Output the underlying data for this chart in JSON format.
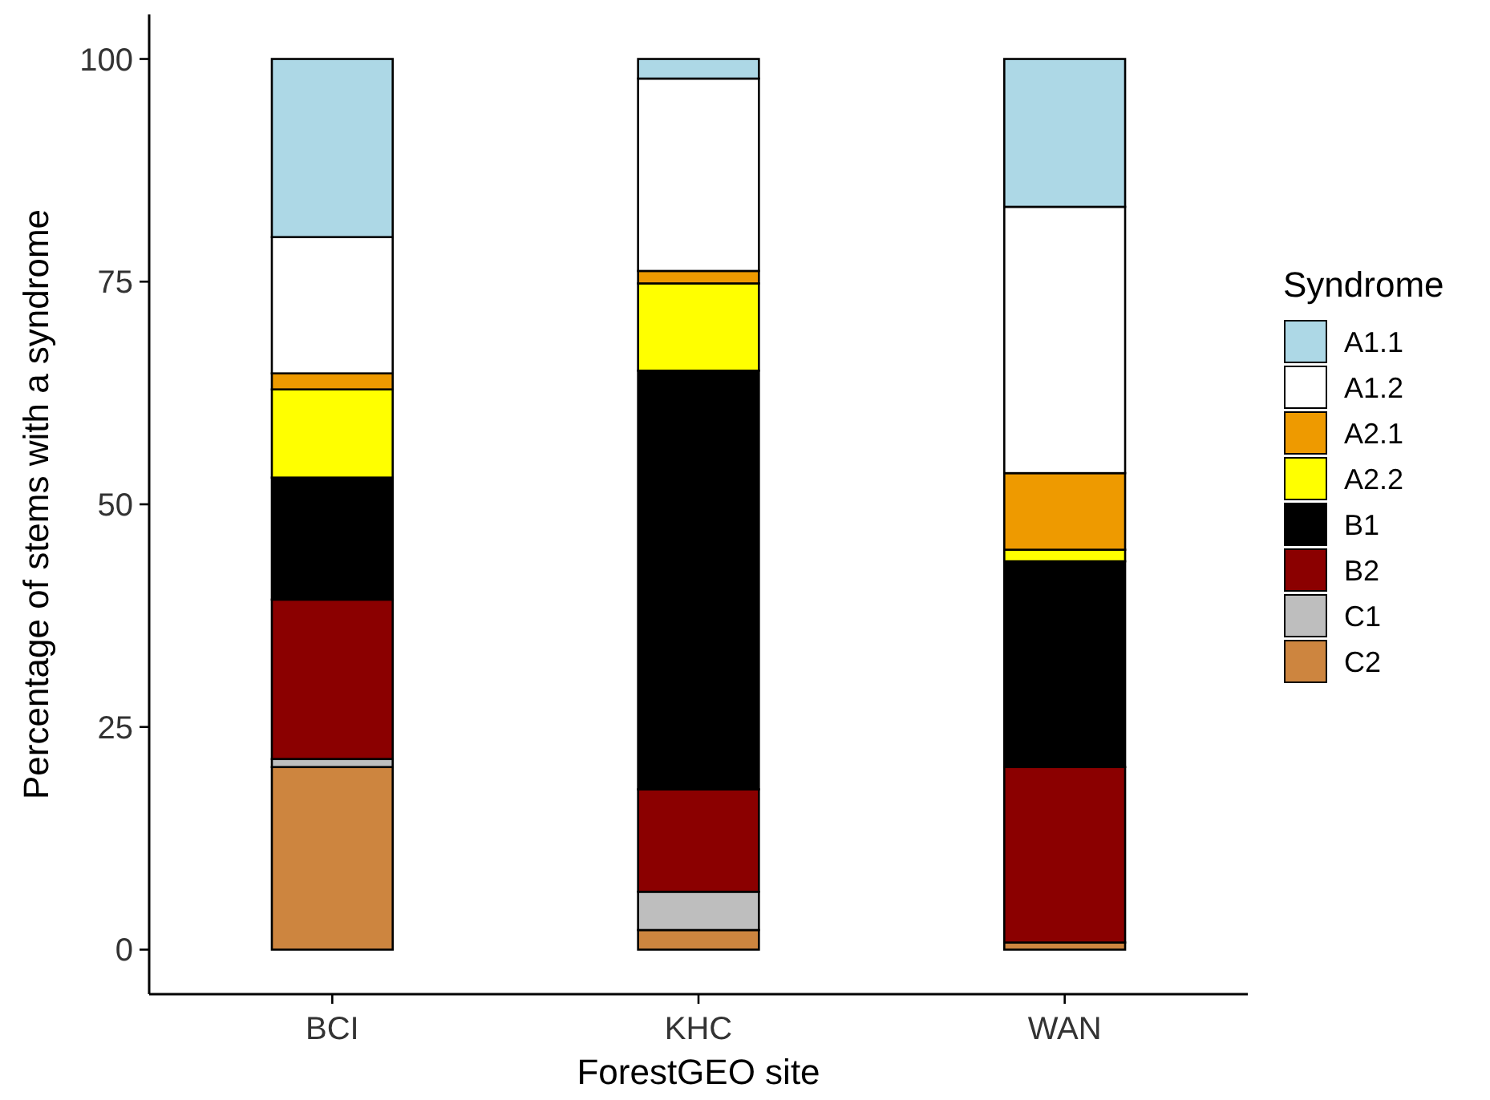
{
  "chart_data": {
    "type": "bar",
    "stacked": true,
    "xlabel": "ForestGEO site",
    "ylabel": "Percentage of stems with a syndrome",
    "legend_title": "Syndrome",
    "legend": "right",
    "grid": false,
    "categories": [
      "BCI",
      "KHC",
      "WAN"
    ],
    "ylim": [
      -5,
      105
    ],
    "yticks": [
      0,
      25,
      50,
      75,
      100
    ],
    "series": [
      {
        "name": "C2",
        "color": "#cd853f",
        "values": [
          20.5,
          2.2,
          0.8
        ]
      },
      {
        "name": "C1",
        "color": "#bebebe",
        "values": [
          0.9,
          4.3,
          0
        ]
      },
      {
        "name": "B2",
        "color": "#8b0000",
        "values": [
          17.9,
          11.5,
          19.7
        ]
      },
      {
        "name": "B1",
        "color": "#000000",
        "values": [
          13.7,
          47.0,
          23.1
        ]
      },
      {
        "name": "A2.2",
        "color": "#ffff00",
        "values": [
          9.9,
          9.8,
          1.3
        ]
      },
      {
        "name": "A2.1",
        "color": "#ee9a00",
        "values": [
          1.8,
          1.4,
          8.6
        ]
      },
      {
        "name": "A1.2",
        "color": "#ffffff",
        "values": [
          15.3,
          21.6,
          29.9
        ]
      },
      {
        "name": "A1.1",
        "color": "#add8e6",
        "values": [
          20.0,
          2.2,
          16.6
        ]
      }
    ]
  }
}
